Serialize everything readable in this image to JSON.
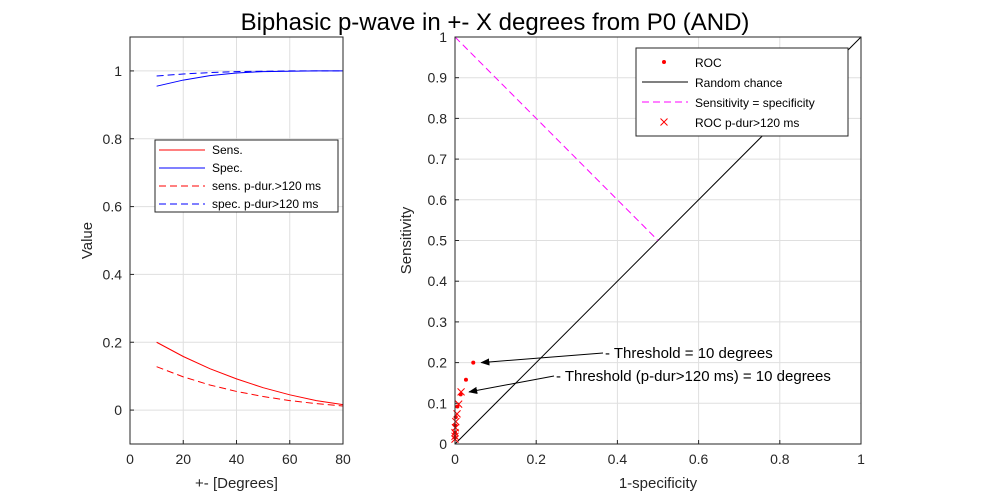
{
  "title": "Biphasic p-wave in +- X degrees from P0 (AND)",
  "chart_data": [
    {
      "type": "line",
      "xlabel": "+- [Degrees]",
      "ylabel": "Value",
      "xlim": [
        0,
        80
      ],
      "ylim": [
        -0.1,
        1.1
      ],
      "xticks": [
        0,
        20,
        40,
        60,
        80
      ],
      "yticks": [
        0,
        0.2,
        0.4,
        0.6,
        0.8,
        1
      ],
      "grid": true,
      "legend_position": "middle-right",
      "series": [
        {
          "name": "Sens.",
          "color": "#ff0000",
          "style": "solid",
          "x": [
            10,
            20,
            30,
            40,
            50,
            60,
            70,
            80
          ],
          "y": [
            0.2,
            0.158,
            0.122,
            0.092,
            0.066,
            0.045,
            0.028,
            0.016
          ]
        },
        {
          "name": "Spec.",
          "color": "#0000ff",
          "style": "solid",
          "x": [
            10,
            20,
            30,
            40,
            50,
            60,
            70,
            80
          ],
          "y": [
            0.955,
            0.973,
            0.986,
            0.994,
            0.998,
            0.999,
            1.0,
            1.0
          ]
        },
        {
          "name": "sens. p-dur.>120 ms",
          "color": "#ff0000",
          "style": "dashed",
          "x": [
            10,
            20,
            30,
            40,
            50,
            60,
            70,
            80
          ],
          "y": [
            0.128,
            0.098,
            0.074,
            0.055,
            0.04,
            0.028,
            0.019,
            0.012
          ]
        },
        {
          "name": "spec. p-dur>120 ms",
          "color": "#0000ff",
          "style": "dashed",
          "x": [
            10,
            20,
            30,
            40,
            50,
            60,
            70,
            80
          ],
          "y": [
            0.985,
            0.991,
            0.995,
            0.998,
            0.999,
            1.0,
            1.0,
            1.0
          ]
        }
      ]
    },
    {
      "type": "scatter",
      "xlabel": "1-specificity",
      "ylabel": "Sensitivity",
      "xlim": [
        0,
        1
      ],
      "ylim": [
        0,
        1
      ],
      "xticks": [
        0,
        0.2,
        0.4,
        0.6,
        0.8,
        1
      ],
      "yticks": [
        0,
        0.1,
        0.2,
        0.3,
        0.4,
        0.5,
        0.6,
        0.7,
        0.8,
        0.9,
        1
      ],
      "grid": true,
      "legend_position": "top-right",
      "series": [
        {
          "name": "ROC",
          "marker": "dot",
          "color": "#ff0000",
          "x": [
            0.045,
            0.027,
            0.014,
            0.006,
            0.002,
            0.001,
            0.0,
            0.0
          ],
          "y": [
            0.2,
            0.158,
            0.122,
            0.092,
            0.066,
            0.045,
            0.028,
            0.016
          ]
        },
        {
          "name": "Random chance",
          "line": "solid",
          "color": "#000000",
          "x": [
            0,
            1
          ],
          "y": [
            0,
            1
          ]
        },
        {
          "name": "Sensitivity = specificity",
          "line": "dashed",
          "color": "#ff00ff",
          "x": [
            0,
            0.5
          ],
          "y": [
            1,
            0.5
          ]
        },
        {
          "name": "ROC p-dur>120 ms",
          "marker": "x",
          "color": "#ff0000",
          "x": [
            0.015,
            0.009,
            0.005,
            0.002,
            0.001,
            0.0,
            0.0,
            0.0
          ],
          "y": [
            0.128,
            0.098,
            0.074,
            0.055,
            0.04,
            0.028,
            0.019,
            0.012
          ]
        }
      ],
      "annotations": [
        {
          "text": "- Threshold = 10 degrees",
          "point": [
            0.045,
            0.2
          ]
        },
        {
          "text": "- Threshold (p-dur>120 ms) = 10 degrees",
          "point": [
            0.015,
            0.128
          ]
        }
      ]
    }
  ]
}
